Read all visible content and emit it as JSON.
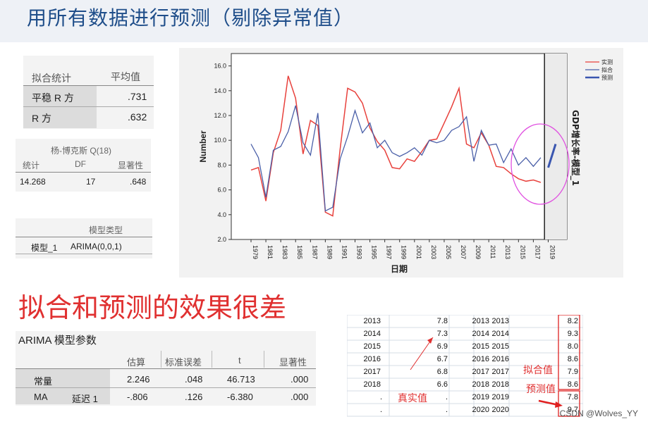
{
  "slide": {
    "title": "用所有数据进行预测（剔除异常值）",
    "big_note": "拟合和预测的效果很差",
    "watermark": "CSDN @Wolves_YY"
  },
  "fit_stats": {
    "col1": "拟合统计",
    "col2": "平均值",
    "rows": [
      {
        "label": "平稳 R 方",
        "value": ".731"
      },
      {
        "label": "R 方",
        "value": ".632"
      }
    ]
  },
  "ljung_box": {
    "title": "杨-博克斯 Q(18)",
    "headers": [
      "统计",
      "DF",
      "显著性"
    ],
    "values": [
      "14.268",
      "17",
      ".648"
    ]
  },
  "model_type": {
    "header": "模型类型",
    "label": "模型_1",
    "value": "ARIMA(0,0,1)"
  },
  "arima_params": {
    "title": "ARIMA 模型参数",
    "headers": [
      "估算",
      "标准误差",
      "t",
      "显著性"
    ],
    "rows": [
      {
        "c1": "常量",
        "c2": "",
        "est": "2.246",
        "se": ".048",
        "t": "46.713",
        "sig": ".000"
      },
      {
        "c1": "MA",
        "c2": "延迟 1",
        "est": "-.806",
        "se": ".126",
        "t": "-6.380",
        "sig": ".000"
      }
    ]
  },
  "sheet": {
    "rows": [
      {
        "year": "2013",
        "actual": "7.8",
        "d1": "2013",
        "d2": "2013",
        "fit": "8.2"
      },
      {
        "year": "2014",
        "actual": "7.3",
        "d1": "2014",
        "d2": "2014",
        "fit": "9.3"
      },
      {
        "year": "2015",
        "actual": "6.9",
        "d1": "2015",
        "d2": "2015",
        "fit": "8.0"
      },
      {
        "year": "2016",
        "actual": "6.7",
        "d1": "2016",
        "d2": "2016",
        "fit": "8.6"
      },
      {
        "year": "2017",
        "actual": "6.8",
        "d1": "2017",
        "d2": "2017",
        "fit": "7.9"
      },
      {
        "year": "2018",
        "actual": "6.6",
        "d1": "2018",
        "d2": "2018",
        "fit": "8.6"
      },
      {
        "year": "",
        "actual": "",
        "d1": "2019",
        "d2": "2019",
        "fit": "7.8"
      },
      {
        "year": "",
        "actual": "",
        "d1": "2020",
        "d2": "2020",
        "fit": "9.7"
      }
    ],
    "label_actual": "真实值",
    "label_fit": "拟合值",
    "label_forecast": "预测值",
    "dot": "."
  },
  "chart_data": {
    "type": "line",
    "xlabel": "日期",
    "ylabel": "Number",
    "right_title": "GDP增长率-模型_1",
    "ylim": [
      2.0,
      17.0
    ],
    "yticks": [
      "2.0",
      "4.0",
      "6.0",
      "8.0",
      "10.0",
      "12.0",
      "14.0",
      "16.0"
    ],
    "xticks": [
      "1979",
      "1981",
      "1983",
      "1985",
      "1987",
      "1989",
      "1991",
      "1993",
      "1995",
      "1997",
      "1999",
      "2001",
      "2003",
      "2005",
      "2007",
      "2009",
      "2011",
      "2013",
      "2015",
      "2017",
      "2019"
    ],
    "x_start": 1979,
    "x_end": 2020,
    "legend": [
      "实测",
      "拟合",
      "预测"
    ],
    "colors": {
      "actual": "#e8413c",
      "fit": "#4a5fa8",
      "forecast": "#3a56b0"
    },
    "actual": [
      7.6,
      7.8,
      5.1,
      9.0,
      10.8,
      15.2,
      13.4,
      8.9,
      11.6,
      11.2,
      4.2,
      3.9,
      9.3,
      14.2,
      13.9,
      13.0,
      11.0,
      9.9,
      9.2,
      7.8,
      7.7,
      8.5,
      8.3,
      9.1,
      10.0,
      10.1,
      11.4,
      12.7,
      14.2,
      9.7,
      9.4,
      10.6,
      9.6,
      7.9,
      7.8,
      7.3,
      6.9,
      6.7,
      6.8,
      6.6
    ],
    "fit": [
      9.7,
      8.6,
      5.4,
      9.2,
      9.5,
      10.7,
      12.8,
      9.8,
      8.8,
      12.2,
      4.3,
      4.6,
      8.5,
      10.3,
      12.4,
      10.6,
      11.4,
      9.4,
      10.0,
      9.0,
      8.7,
      9.0,
      9.4,
      8.8,
      10.0,
      9.8,
      10.0,
      10.8,
      11.1,
      11.9,
      8.3,
      10.8,
      9.6,
      9.7,
      8.2,
      9.3,
      8.0,
      8.6,
      7.9,
      8.6
    ],
    "forecast": [
      7.8,
      9.7
    ]
  }
}
